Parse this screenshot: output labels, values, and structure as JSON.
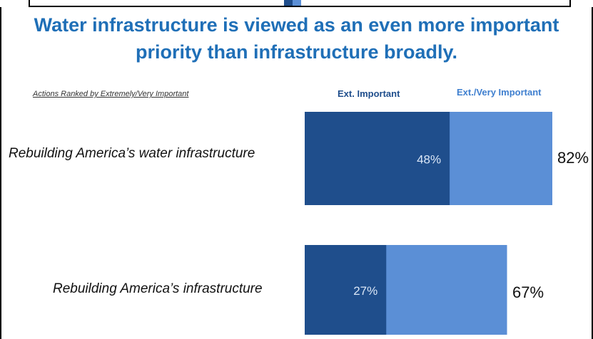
{
  "page": {
    "title_line1": "Water infrastructure is viewed as an even more important",
    "title_line2": "priority than infrastructure broadly.",
    "subheading": "Actions Ranked by Extremely/Very Important"
  },
  "colors": {
    "title": "#1f6fb7",
    "dark_bar": "#1f4e8c",
    "light_bar": "#5b8fd6"
  },
  "chart_data": {
    "type": "bar",
    "orientation": "horizontal",
    "stacked_overlay": true,
    "categories": [
      "Rebuilding America’s water infrastructure",
      "Rebuilding America’s infrastructure"
    ],
    "series": [
      {
        "name": "Ext. Important",
        "values": [
          48,
          27
        ],
        "labels": [
          "48%",
          "27%"
        ]
      },
      {
        "name": "Ext./Very Important",
        "values": [
          82,
          67
        ],
        "labels": [
          "82%",
          "67%"
        ]
      }
    ],
    "xlim": [
      0,
      100
    ],
    "grid": false,
    "legend": "top"
  }
}
